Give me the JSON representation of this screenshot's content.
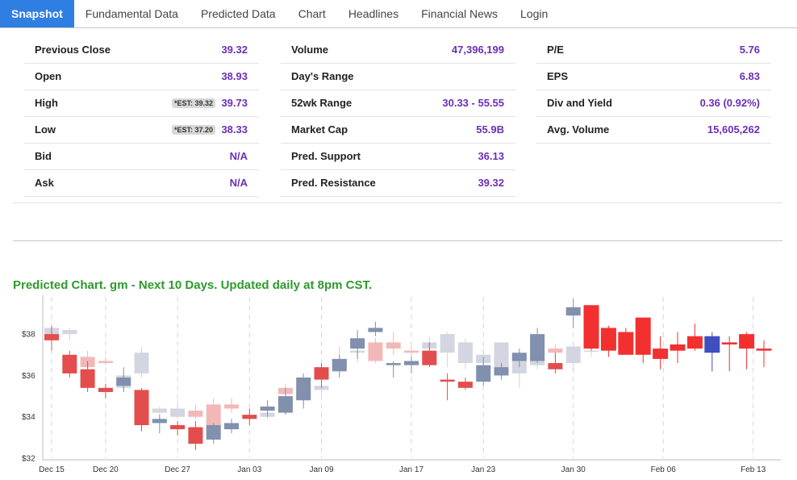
{
  "tabs": [
    {
      "label": "Snapshot",
      "active": true
    },
    {
      "label": "Fundamental Data"
    },
    {
      "label": "Predicted Data"
    },
    {
      "label": "Chart"
    },
    {
      "label": "Headlines"
    },
    {
      "label": "Financial News"
    },
    {
      "label": "Login"
    }
  ],
  "stats": {
    "col1": [
      {
        "label": "Previous Close",
        "value": "39.32"
      },
      {
        "label": "Open",
        "value": "38.93"
      },
      {
        "label": "High",
        "value": "39.73",
        "est": "*EST: 39.32"
      },
      {
        "label": "Low",
        "value": "38.33",
        "est": "*EST: 37.20"
      },
      {
        "label": "Bid",
        "value": "N/A"
      },
      {
        "label": "Ask",
        "value": "N/A"
      }
    ],
    "col2": [
      {
        "label": "Volume",
        "value": "47,396,199"
      },
      {
        "label": "Day's Range",
        "value": ""
      },
      {
        "label": "52wk Range",
        "value": "30.33 - 55.55"
      },
      {
        "label": "Market Cap",
        "value": "55.9B"
      },
      {
        "label": "Pred. Support",
        "value": "36.13"
      },
      {
        "label": "Pred. Resistance",
        "value": "39.32"
      }
    ],
    "col3": [
      {
        "label": "P/E",
        "value": "5.76"
      },
      {
        "label": "EPS",
        "value": "6.83"
      },
      {
        "label": "Div and Yield",
        "value": "0.36 (0.92%)"
      },
      {
        "label": "Avg. Volume",
        "value": "15,605,262"
      }
    ]
  },
  "chart": {
    "title": "Predicted Chart. gm - Next 10 Days. Updated daily at 8pm CST."
  },
  "chart_data": {
    "type": "candlestick",
    "y_ticks": [
      "$32",
      "$34",
      "$36",
      "$38"
    ],
    "ylim": [
      32,
      39.8
    ],
    "x_ticks": [
      {
        "label": "Dec 15",
        "i": 0
      },
      {
        "label": "Dec 20",
        "i": 3
      },
      {
        "label": "Dec 27",
        "i": 7
      },
      {
        "label": "Jan 03",
        "i": 11
      },
      {
        "label": "Jan 09",
        "i": 15
      },
      {
        "label": "Jan 17",
        "i": 20
      },
      {
        "label": "Jan 23",
        "i": 24
      },
      {
        "label": "Jan 30",
        "i": 29
      },
      {
        "label": "Feb 06",
        "i": 34
      },
      {
        "label": "Feb 13",
        "i": 39
      }
    ],
    "series_colors": {
      "hist_up": "#8090ad",
      "hist_down": "#e34d4d",
      "pred_up": "#d3d5e0",
      "pred_down": "#f2b8b8",
      "fut_down": "#f23030",
      "fut_up": "#3f4fbf"
    },
    "historical": [
      {
        "o": 38.0,
        "h": 38.4,
        "l": 37.2,
        "c": 37.7
      },
      {
        "o": 37.0,
        "h": 37.2,
        "l": 35.9,
        "c": 36.1
      },
      {
        "o": 36.3,
        "h": 36.7,
        "l": 35.2,
        "c": 35.4
      },
      {
        "o": 35.4,
        "h": 35.6,
        "l": 34.9,
        "c": 35.2
      },
      {
        "o": 35.5,
        "h": 36.4,
        "l": 35.2,
        "c": 35.9
      },
      {
        "o": 35.3,
        "h": 35.4,
        "l": 33.3,
        "c": 33.6
      },
      {
        "o": 33.7,
        "h": 34.1,
        "l": 33.2,
        "c": 33.9
      },
      {
        "o": 33.6,
        "h": 33.8,
        "l": 33.1,
        "c": 33.4
      },
      {
        "o": 33.5,
        "h": 33.8,
        "l": 32.4,
        "c": 32.7
      },
      {
        "o": 32.9,
        "h": 33.7,
        "l": 32.7,
        "c": 33.6
      },
      {
        "o": 33.4,
        "h": 33.9,
        "l": 33.2,
        "c": 33.7
      },
      {
        "o": 34.1,
        "h": 34.4,
        "l": 33.6,
        "c": 33.9
      },
      {
        "o": 34.3,
        "h": 34.8,
        "l": 34.0,
        "c": 34.5
      },
      {
        "o": 34.2,
        "h": 35.4,
        "l": 34.1,
        "c": 35.0
      },
      {
        "o": 34.8,
        "h": 36.1,
        "l": 34.4,
        "c": 35.9
      },
      {
        "o": 36.4,
        "h": 36.6,
        "l": 35.4,
        "c": 35.8
      },
      {
        "o": 36.2,
        "h": 37.0,
        "l": 35.9,
        "c": 36.8
      },
      {
        "o": 37.3,
        "h": 38.2,
        "l": 36.8,
        "c": 37.8
      },
      {
        "o": 38.1,
        "h": 38.6,
        "l": 37.9,
        "c": 38.3
      },
      {
        "o": 36.5,
        "h": 36.7,
        "l": 35.9,
        "c": 36.6
      },
      {
        "o": 36.5,
        "h": 36.9,
        "l": 36.1,
        "c": 36.7
      },
      {
        "o": 37.2,
        "h": 37.6,
        "l": 36.4,
        "c": 36.5
      },
      {
        "o": 35.8,
        "h": 36.1,
        "l": 34.8,
        "c": 35.7
      },
      {
        "o": 35.7,
        "h": 35.9,
        "l": 35.3,
        "c": 35.4
      },
      {
        "o": 35.7,
        "h": 36.9,
        "l": 35.5,
        "c": 36.5
      },
      {
        "o": 36.0,
        "h": 36.6,
        "l": 35.8,
        "c": 36.4
      },
      {
        "o": 36.7,
        "h": 37.3,
        "l": 36.4,
        "c": 37.1
      },
      {
        "o": 36.7,
        "h": 38.3,
        "l": 36.6,
        "c": 38.0
      },
      {
        "o": 36.6,
        "h": 37.1,
        "l": 36.1,
        "c": 36.3
      },
      {
        "o": 38.9,
        "h": 39.7,
        "l": 38.3,
        "c": 39.3
      }
    ],
    "predicted": [
      {
        "o": 37.9,
        "h": 38.5,
        "l": 37.6,
        "c": 38.3
      },
      {
        "o": 38.0,
        "h": 38.3,
        "l": 37.7,
        "c": 38.2
      },
      {
        "o": 36.9,
        "h": 37.2,
        "l": 36.2,
        "c": 36.4
      },
      {
        "o": 36.7,
        "h": 36.9,
        "l": 36.5,
        "c": 36.6
      },
      {
        "o": 35.4,
        "h": 36.2,
        "l": 35.2,
        "c": 36.0
      },
      {
        "o": 36.1,
        "h": 37.4,
        "l": 35.9,
        "c": 37.1
      },
      {
        "o": 34.2,
        "h": 34.5,
        "l": 33.8,
        "c": 34.4
      },
      {
        "o": 34.0,
        "h": 34.8,
        "l": 33.9,
        "c": 34.4
      },
      {
        "o": 34.3,
        "h": 34.6,
        "l": 33.9,
        "c": 34.0
      },
      {
        "o": 34.6,
        "h": 34.9,
        "l": 32.9,
        "c": 33.5
      },
      {
        "o": 34.6,
        "h": 34.9,
        "l": 34.2,
        "c": 34.4
      },
      {
        "o": 34.0,
        "h": 34.4,
        "l": 33.8,
        "c": 34.1
      },
      {
        "o": 34.0,
        "h": 34.6,
        "l": 33.9,
        "c": 34.2
      },
      {
        "o": 35.4,
        "h": 35.6,
        "l": 34.9,
        "c": 35.1
      },
      {
        "o": 34.9,
        "h": 35.3,
        "l": 34.6,
        "c": 35.2
      },
      {
        "o": 35.3,
        "h": 35.7,
        "l": 35.0,
        "c": 35.5
      },
      {
        "o": 36.8,
        "h": 37.4,
        "l": 36.2,
        "c": 36.4
      },
      {
        "o": 37.1,
        "h": 37.4,
        "l": 36.6,
        "c": 37.2
      },
      {
        "o": 37.6,
        "h": 37.8,
        "l": 36.6,
        "c": 36.7
      },
      {
        "o": 37.6,
        "h": 38.1,
        "l": 37.0,
        "c": 37.3
      },
      {
        "o": 37.2,
        "h": 37.4,
        "l": 36.5,
        "c": 37.1
      },
      {
        "o": 37.3,
        "h": 37.9,
        "l": 36.6,
        "c": 37.6
      },
      {
        "o": 37.1,
        "h": 38.1,
        "l": 36.4,
        "c": 38.0
      },
      {
        "o": 36.6,
        "h": 37.8,
        "l": 36.3,
        "c": 37.6
      },
      {
        "o": 36.6,
        "h": 37.3,
        "l": 36.3,
        "c": 37.0
      },
      {
        "o": 36.1,
        "h": 37.6,
        "l": 35.9,
        "c": 37.6
      },
      {
        "o": 36.1,
        "h": 37.0,
        "l": 35.4,
        "c": 36.9
      },
      {
        "o": 36.5,
        "h": 37.4,
        "l": 36.3,
        "c": 37.2
      },
      {
        "o": 37.3,
        "h": 37.5,
        "l": 36.6,
        "c": 37.1
      },
      {
        "o": 36.6,
        "h": 37.6,
        "l": 36.2,
        "c": 37.4
      },
      {
        "o": 37.2,
        "h": 37.6,
        "l": 36.9,
        "c": 37.2
      }
    ],
    "future": [
      {
        "o": 39.4,
        "h": 39.4,
        "l": 37.2,
        "c": 37.3
      },
      {
        "o": 38.3,
        "h": 38.4,
        "l": 36.9,
        "c": 37.2
      },
      {
        "o": 38.1,
        "h": 38.3,
        "l": 37.1,
        "c": 37.0
      },
      {
        "o": 38.8,
        "h": 38.8,
        "l": 36.6,
        "c": 37.0
      },
      {
        "o": 37.3,
        "h": 37.9,
        "l": 36.3,
        "c": 36.8
      },
      {
        "o": 37.5,
        "h": 38.1,
        "l": 36.6,
        "c": 37.2
      },
      {
        "o": 37.9,
        "h": 38.5,
        "l": 37.2,
        "c": 37.3
      },
      {
        "o": 37.1,
        "h": 38.1,
        "l": 36.2,
        "c": 37.9,
        "up": true
      },
      {
        "o": 37.6,
        "h": 37.9,
        "l": 36.2,
        "c": 37.5
      },
      {
        "o": 38.0,
        "h": 38.1,
        "l": 36.3,
        "c": 37.3
      },
      {
        "o": 37.3,
        "h": 37.7,
        "l": 36.4,
        "c": 37.2
      }
    ]
  }
}
